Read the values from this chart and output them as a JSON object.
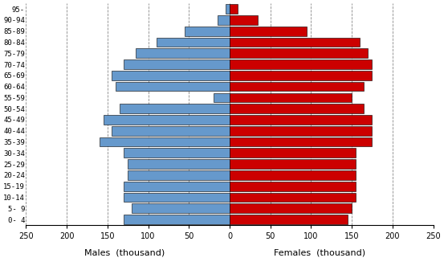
{
  "age_groups": [
    "0- 4",
    "5- 9",
    "10-14",
    "15-19",
    "20-24",
    "25-29",
    "30-34",
    "35-39",
    "40-44",
    "45-49",
    "50-54",
    "55-59",
    "60-64",
    "65-69",
    "70-74",
    "75-79",
    "80-84",
    "85-89",
    "90-94",
    "95-"
  ],
  "males": [
    130,
    120,
    130,
    130,
    125,
    125,
    130,
    160,
    145,
    155,
    135,
    20,
    140,
    145,
    130,
    115,
    90,
    55,
    15,
    5
  ],
  "females": [
    145,
    150,
    155,
    155,
    155,
    155,
    155,
    175,
    175,
    175,
    165,
    150,
    165,
    175,
    175,
    170,
    160,
    95,
    35,
    10
  ],
  "male_color": "#6699CC",
  "female_color": "#CC0000",
  "edge_color": "#000000",
  "xlabel_male": "Males  (thousand)",
  "xlabel_female": "Females  (thousand)",
  "xlim": 250,
  "grid_color": "#888888",
  "background_color": "#FFFFFF"
}
